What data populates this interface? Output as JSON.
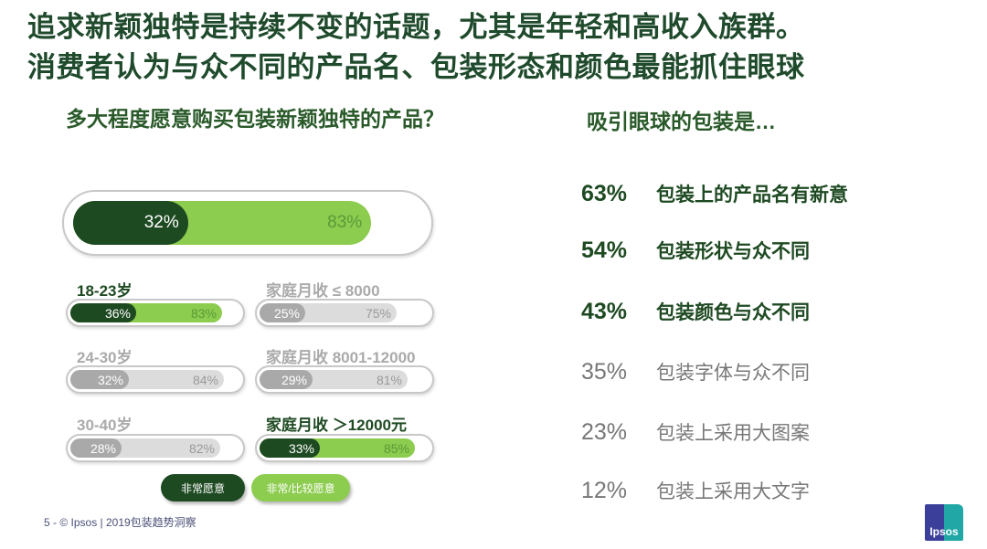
{
  "headline": [
    "追求新颖独特是持续不变的话题，尤其是年轻和高收入族群。",
    "消费者认为与众不同的产品名、包装形态和颜色最能抓住眼球"
  ],
  "left_title": "多大程度愿意购买包装新颖独特的产品？",
  "right_title": "吸引眼球的包装是…",
  "colors": {
    "dark_green": "#1e4a22",
    "light_green": "#8ccc4e",
    "dark_grey": "#a9a9a9",
    "light_grey": "#dcdcdc"
  },
  "chart_data": [
    {
      "type": "bar",
      "orientation": "horizontal",
      "stacked_overlay": true,
      "series_names": [
        "非常愿意",
        "非常/比较愿意"
      ],
      "groups": [
        {
          "label": "",
          "very": 32,
          "very_or_somewhat": 83,
          "highlight": true
        },
        {
          "label": "18-23岁",
          "very": 36,
          "very_or_somewhat": 83,
          "highlight": true
        },
        {
          "label": "家庭月收 ≤ 8000",
          "very": 25,
          "very_or_somewhat": 75,
          "highlight": false
        },
        {
          "label": "24-30岁",
          "very": 32,
          "very_or_somewhat": 84,
          "highlight": false
        },
        {
          "label": "家庭月收 8001-12000",
          "very": 29,
          "very_or_somewhat": 81,
          "highlight": false
        },
        {
          "label": "30-40岁",
          "very": 28,
          "very_or_somewhat": 82,
          "highlight": false
        },
        {
          "label": "家庭月收 ＞12000元",
          "very": 33,
          "very_or_somewhat": 85,
          "highlight": true
        }
      ]
    },
    {
      "type": "table",
      "items": [
        {
          "pct": "63%",
          "label": "包装上的产品名有新意",
          "highlight": true
        },
        {
          "pct": "54%",
          "label": "包装形状与众不同",
          "highlight": true
        },
        {
          "pct": "43%",
          "label": "包装颜色与众不同",
          "highlight": true
        },
        {
          "pct": "35%",
          "label": "包装字体与众不同",
          "highlight": false
        },
        {
          "pct": "23%",
          "label": "包装上采用大图案",
          "highlight": false
        },
        {
          "pct": "12%",
          "label": "包装上采用大文字",
          "highlight": false
        }
      ]
    }
  ],
  "legend": [
    "非常愿意",
    "非常/比较愿意"
  ],
  "footer": "5 - © Ipsos | 2019包装趋势洞察",
  "logo_text": "Ipsos"
}
